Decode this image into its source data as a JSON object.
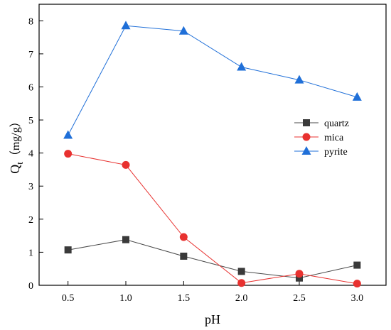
{
  "chart_data": {
    "type": "line",
    "title": "",
    "xlabel": "pH",
    "ylabel_main": "Q",
    "ylabel_sub": "t",
    "ylabel_unit": "（mg/g）",
    "xlim": [
      0.25,
      3.25
    ],
    "ylim": [
      0,
      8.5
    ],
    "x": [
      0.5,
      1.0,
      1.5,
      2.0,
      2.5,
      3.0
    ],
    "x_ticks": [
      "0.5",
      "1.0",
      "1.5",
      "2.0",
      "2.5",
      "3.0"
    ],
    "y_ticks": [
      "0",
      "1",
      "2",
      "3",
      "4",
      "5",
      "6",
      "7",
      "8"
    ],
    "y_tick_values": [
      0,
      1,
      2,
      3,
      4,
      5,
      6,
      7,
      8
    ],
    "grid": false,
    "legend_position": "right-middle",
    "series": [
      {
        "name": "quartz",
        "marker": "square",
        "color": "#4a4a4a",
        "marker_color": "#3a3a3a",
        "values": [
          1.07,
          1.38,
          0.88,
          0.42,
          0.22,
          0.61
        ]
      },
      {
        "name": "mica",
        "marker": "circle",
        "color": "#e8312f",
        "marker_color": "#e8312f",
        "values": [
          3.98,
          3.64,
          1.46,
          0.07,
          0.35,
          0.05
        ]
      },
      {
        "name": "pyrite",
        "marker": "triangle",
        "color": "#1f6fd8",
        "marker_color": "#1f6fd8",
        "values": [
          4.54,
          7.85,
          7.69,
          6.6,
          6.21,
          5.69
        ]
      }
    ]
  }
}
